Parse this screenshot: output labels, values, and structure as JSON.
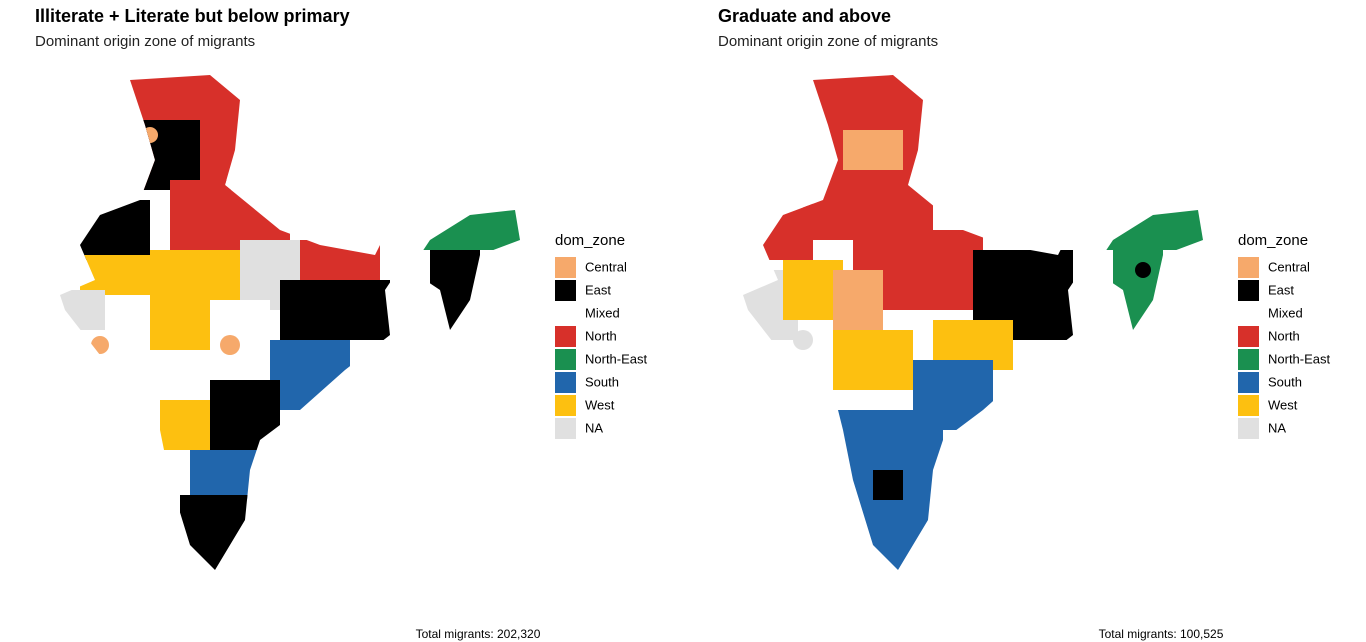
{
  "panels": [
    {
      "title": "Illiterate + Literate but below primary",
      "subtitle": "Dominant origin zone of migrants",
      "legend_title": "dom_zone",
      "legend": [
        {
          "name": "Central",
          "color": "#f6a96b"
        },
        {
          "name": "East",
          "color": "#000000"
        },
        {
          "name": "Mixed",
          "color": "#ffffff"
        },
        {
          "name": "North",
          "color": "#d7302a"
        },
        {
          "name": "North-East",
          "color": "#1a9050"
        },
        {
          "name": "South",
          "color": "#2166ac"
        },
        {
          "name": "West",
          "color": "#fdc010"
        },
        {
          "name": "NA",
          "color": "#e0e0e0"
        }
      ],
      "caption": "Total migrants: 202,320"
    },
    {
      "title": "Graduate and above",
      "subtitle": "Dominant origin zone of migrants",
      "legend_title": "dom_zone",
      "legend": [
        {
          "name": "Central",
          "color": "#f6a96b"
        },
        {
          "name": "East",
          "color": "#000000"
        },
        {
          "name": "Mixed",
          "color": "#ffffff"
        },
        {
          "name": "North",
          "color": "#d7302a"
        },
        {
          "name": "North-East",
          "color": "#1a9050"
        },
        {
          "name": "South",
          "color": "#2166ac"
        },
        {
          "name": "West",
          "color": "#fdc010"
        },
        {
          "name": "NA",
          "color": "#e0e0e0"
        }
      ],
      "caption": "Total migrants: 100,525"
    }
  ]
}
